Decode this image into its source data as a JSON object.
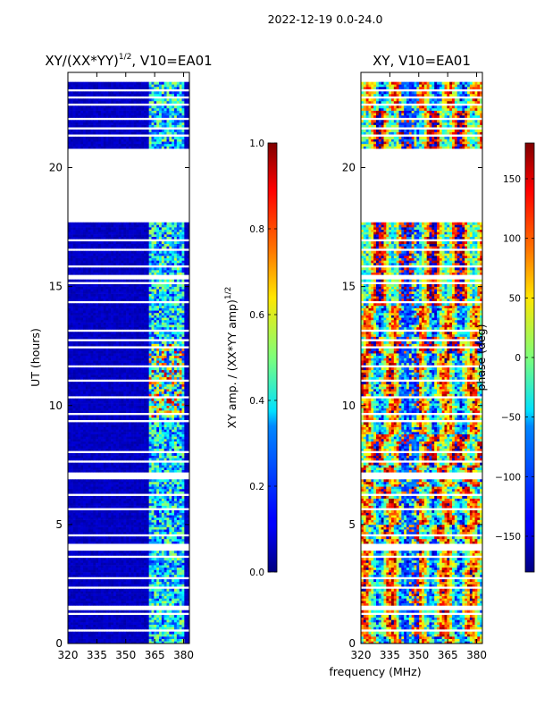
{
  "figure_title": "2022-12-19 0.0-24.0",
  "chart_data": [
    {
      "type": "heatmap",
      "title": "XY/(XX*YY)",
      "title_superscript": "1/2",
      "title_suffix": ", V10=EA01",
      "xlabel": "",
      "ylabel": "UT (hours)",
      "xlim": [
        320,
        383
      ],
      "ylim": [
        0,
        24
      ],
      "xticks": [
        320,
        335,
        350,
        365,
        380
      ],
      "yticks": [
        0,
        5,
        10,
        15,
        20
      ],
      "colorbar": {
        "label": "XY amp. / (XX*YY amp)",
        "label_superscript": "1/2",
        "range": [
          0.0,
          1.0
        ],
        "ticks": [
          "0.0",
          "0.2",
          "0.4",
          "0.6",
          "0.8",
          "1.0"
        ],
        "colormap": "jet"
      }
    },
    {
      "type": "heatmap",
      "title": "XY, V10=EA01",
      "xlabel": "frequency (MHz)",
      "ylabel": "",
      "xlim": [
        320,
        383
      ],
      "ylim": [
        0,
        24
      ],
      "xticks": [
        320,
        335,
        350,
        365,
        380
      ],
      "yticks": [
        0,
        5,
        10,
        15,
        20
      ],
      "colorbar": {
        "label": "phase (deg)",
        "range": [
          -180,
          180
        ],
        "ticks": [
          "−150",
          "−100",
          "−50",
          "0",
          "50",
          "100",
          "150"
        ],
        "tick_values": [
          -150,
          -100,
          -50,
          0,
          50,
          100,
          150
        ],
        "colormap": "jet"
      }
    }
  ],
  "data_gaps_hours": [
    [
      0.0,
      0.05
    ],
    [
      0.5,
      0.55
    ],
    [
      1.2,
      1.28
    ],
    [
      1.4,
      1.65
    ],
    [
      2.3,
      2.36
    ],
    [
      2.7,
      2.76
    ],
    [
      3.1,
      3.15
    ],
    [
      3.6,
      3.66
    ],
    [
      3.9,
      4.2
    ],
    [
      4.5,
      4.56
    ],
    [
      5.0,
      5.05
    ],
    [
      5.6,
      5.66
    ],
    [
      6.2,
      6.27
    ],
    [
      6.9,
      7.2
    ],
    [
      7.6,
      7.66
    ],
    [
      8.0,
      8.07
    ],
    [
      8.4,
      8.45
    ],
    [
      8.9,
      8.95
    ],
    [
      9.3,
      9.38
    ],
    [
      9.6,
      9.66
    ],
    [
      10.3,
      10.36
    ],
    [
      11.0,
      11.07
    ],
    [
      11.6,
      11.7
    ],
    [
      12.4,
      12.47
    ],
    [
      12.7,
      12.8
    ],
    [
      13.1,
      13.2
    ],
    [
      13.9,
      13.95
    ],
    [
      14.3,
      14.4
    ],
    [
      15.1,
      15.17
    ],
    [
      15.3,
      15.5
    ],
    [
      15.8,
      15.87
    ],
    [
      16.5,
      16.56
    ],
    [
      16.9,
      17.0
    ],
    [
      17.3,
      17.35
    ],
    [
      17.7,
      20.85
    ],
    [
      21.3,
      21.36
    ],
    [
      21.6,
      21.75
    ],
    [
      22.0,
      22.07
    ],
    [
      22.4,
      22.45
    ],
    [
      22.6,
      22.66
    ],
    [
      22.9,
      22.96
    ],
    [
      23.2,
      23.35
    ],
    [
      23.6,
      24.0
    ]
  ]
}
